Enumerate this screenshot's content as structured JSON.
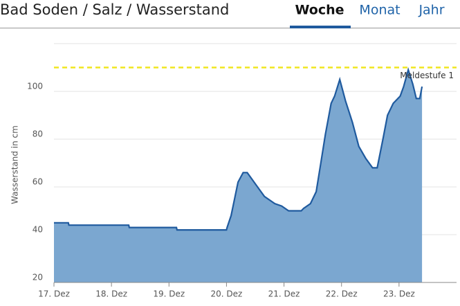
{
  "header": {
    "title": "Bad Soden / Salz / Wasserstand",
    "tabs": [
      "Woche",
      "Monat",
      "Jahr"
    ],
    "active_tab": 0
  },
  "chart_data": {
    "type": "area",
    "y_label": "Wasserstand in cm",
    "x": [
      17,
      17.25,
      17.26,
      18.3,
      18.31,
      19.13,
      19.14,
      20.0,
      20.01,
      20.08,
      20.14,
      20.2,
      20.29,
      20.36,
      20.54,
      20.66,
      20.84,
      20.96,
      21.08,
      21.2,
      21.3,
      21.34,
      21.46,
      21.56,
      21.64,
      21.72,
      21.82,
      21.88,
      21.97,
      22.07,
      22.19,
      22.3,
      22.42,
      22.54,
      22.62,
      22.72,
      22.8,
      22.9,
      23.02,
      23.08,
      23.16,
      23.24,
      23.3,
      23.36,
      23.4
    ],
    "series": [
      {
        "name": "Wasserstand",
        "color": "#1f5a9e",
        "fill": "#7ba7d0",
        "values": [
          45,
          45,
          44,
          44,
          43,
          43,
          42,
          42,
          43,
          48,
          55,
          62,
          66,
          66,
          60,
          56,
          53,
          52,
          50,
          50,
          50,
          51,
          53,
          58,
          70,
          82,
          95,
          98,
          105,
          96,
          87,
          77,
          72,
          68,
          68,
          80,
          90,
          95,
          98,
          102,
          109,
          103,
          97,
          97,
          102
        ]
      }
    ],
    "threshold": {
      "value": 110,
      "label": "Meldestufe 1",
      "color": "#f0e61e"
    },
    "xlim": [
      17,
      24
    ],
    "xticks": [
      {
        "value": 17,
        "label": "17. Dez"
      },
      {
        "value": 18,
        "label": "18. Dez"
      },
      {
        "value": 19,
        "label": "19. Dez"
      },
      {
        "value": 20,
        "label": "20. Dez"
      },
      {
        "value": 21,
        "label": "21. Dez"
      },
      {
        "value": 22,
        "label": "22. Dez"
      },
      {
        "value": 23,
        "label": "23. Dez"
      }
    ],
    "ylim": [
      20,
      120
    ],
    "yticks": [
      20,
      40,
      60,
      80,
      100
    ],
    "grid": true
  }
}
